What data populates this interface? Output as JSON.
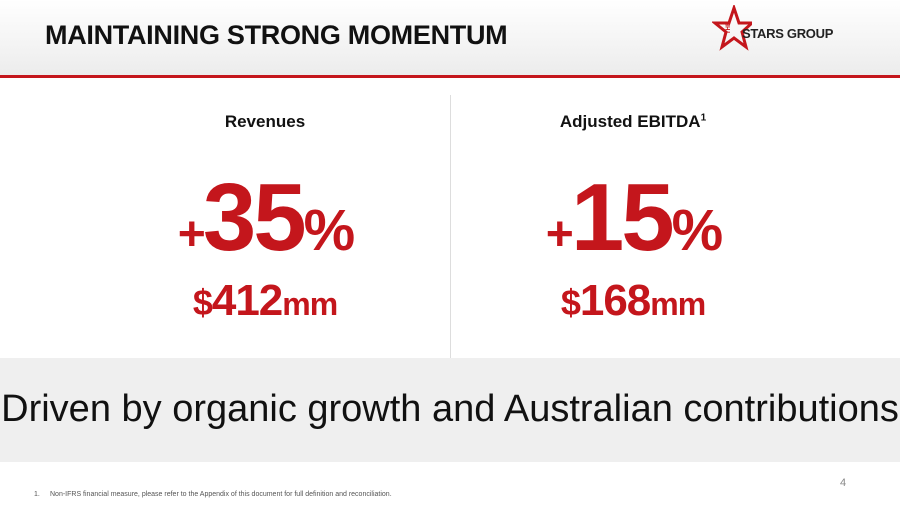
{
  "header": {
    "title": "MAINTAINING STRONG MOMENTUM",
    "logo": {
      "small": "THE",
      "name": "STARS GROUP"
    }
  },
  "metrics": [
    {
      "label": "Revenues",
      "sup": null,
      "sign": "+",
      "number": "35",
      "unit": "%",
      "currency": "$",
      "amount": "412",
      "scale": "mm"
    },
    {
      "label": "Adjusted EBITDA",
      "sup": "1",
      "sign": "+",
      "number": "15",
      "unit": "%",
      "currency": "$",
      "amount": "168",
      "scale": "mm"
    }
  ],
  "banner": "Driven by organic growth and Australian contributions",
  "page_number": "4",
  "footnote": {
    "marker": "1.",
    "text": "Non-IFRS financial measure, please refer to the Appendix of this document for full definition and reconciliation."
  }
}
